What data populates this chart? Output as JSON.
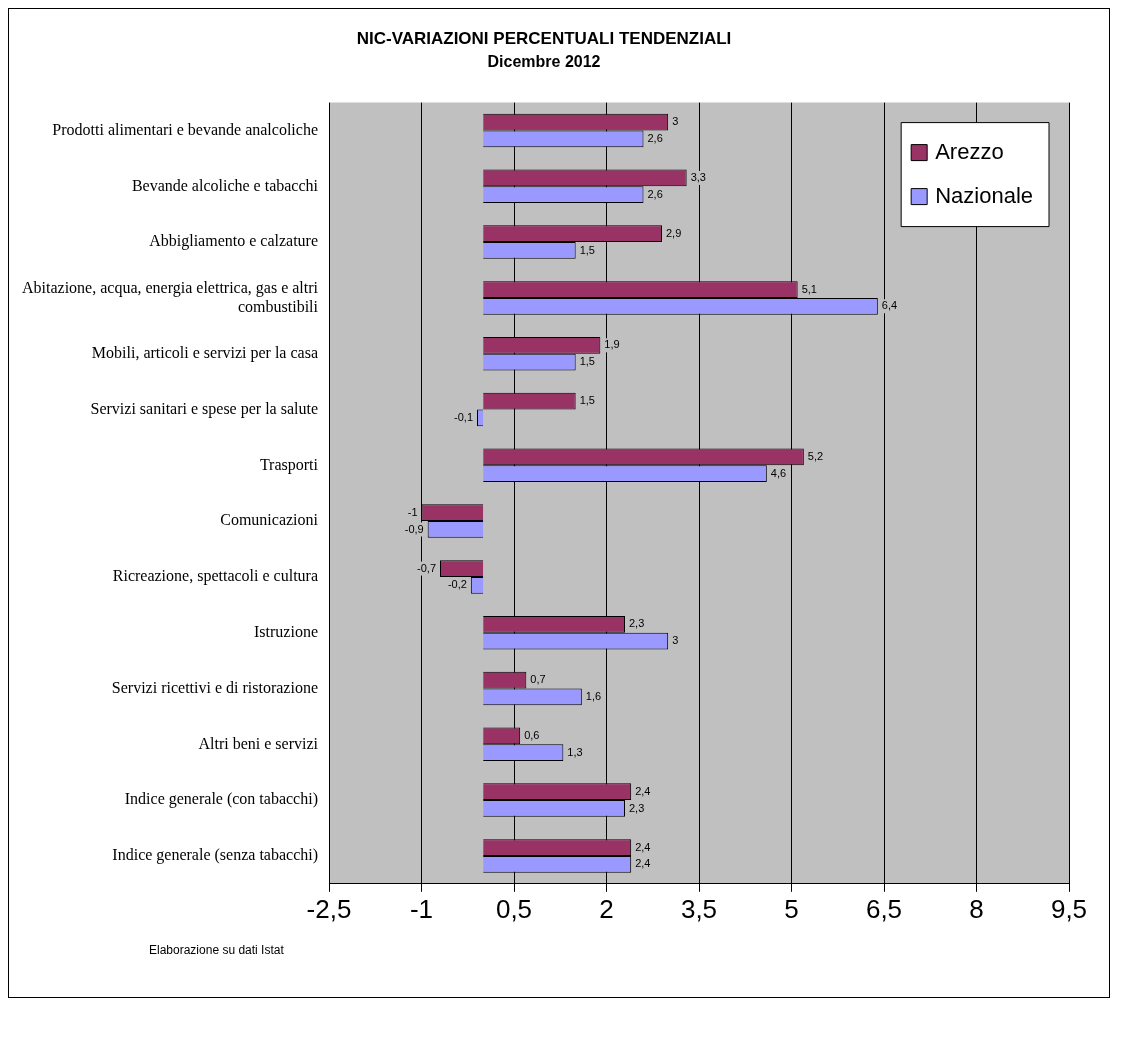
{
  "chart_data": {
    "type": "bar",
    "orientation": "horizontal",
    "title": "NIC-VARIAZIONI PERCENTUALI TENDENZIALI",
    "subtitle": "Dicembre 2012",
    "categories": [
      "Prodotti alimentari e bevande analcoliche",
      "Bevande alcoliche e tabacchi",
      "Abbigliamento e calzature",
      "Abitazione, acqua, energia elettrica, gas e altri combustibili",
      "Mobili, articoli e servizi per la casa",
      "Servizi sanitari e spese per la salute",
      "Trasporti",
      "Comunicazioni",
      "Ricreazione, spettacoli e cultura",
      "Istruzione",
      "Servizi ricettivi e di ristorazione",
      "Altri beni e servizi",
      "Indice generale (con tabacchi)",
      "Indice generale (senza tabacchi)"
    ],
    "series": [
      {
        "name": "Arezzo",
        "color": "#993366",
        "values": [
          3,
          3.3,
          2.9,
          5.1,
          1.9,
          1.5,
          5.2,
          -1,
          -0.7,
          2.3,
          0.7,
          0.6,
          2.4,
          2.4
        ],
        "value_labels": [
          "3",
          "3,3",
          "2,9",
          "5,1",
          "1,9",
          "1,5",
          "5,2",
          "-1",
          "-0,7",
          "2,3",
          "0,7",
          "0,6",
          "2,4",
          "2,4"
        ]
      },
      {
        "name": "Nazionale",
        "color": "#9999ff",
        "values": [
          2.6,
          2.6,
          1.5,
          6.4,
          1.5,
          -0.1,
          4.6,
          -0.9,
          -0.2,
          3,
          1.6,
          1.3,
          2.3,
          2.4
        ],
        "value_labels": [
          "2,6",
          "2,6",
          "1,5",
          "6,4",
          "1,5",
          "-0,1",
          "4,6",
          "-0,9",
          "-0,2",
          "3",
          "1,6",
          "1,3",
          "2,3",
          "2,4"
        ]
      }
    ],
    "xlim": [
      -2.5,
      9.5
    ],
    "xticks": [
      {
        "value": -2.5,
        "label": "-2,5"
      },
      -1,
      {
        "value": 0.5,
        "label": "0,5"
      },
      2,
      {
        "value": 3.5,
        "label": "3,5"
      },
      5,
      {
        "value": 6.5,
        "label": "6,5"
      },
      8,
      {
        "value": 9.5,
        "label": "9,5"
      }
    ],
    "grid": "x",
    "legend": "top right",
    "annotations": [
      "Elaborazione su dati Istat"
    ]
  }
}
